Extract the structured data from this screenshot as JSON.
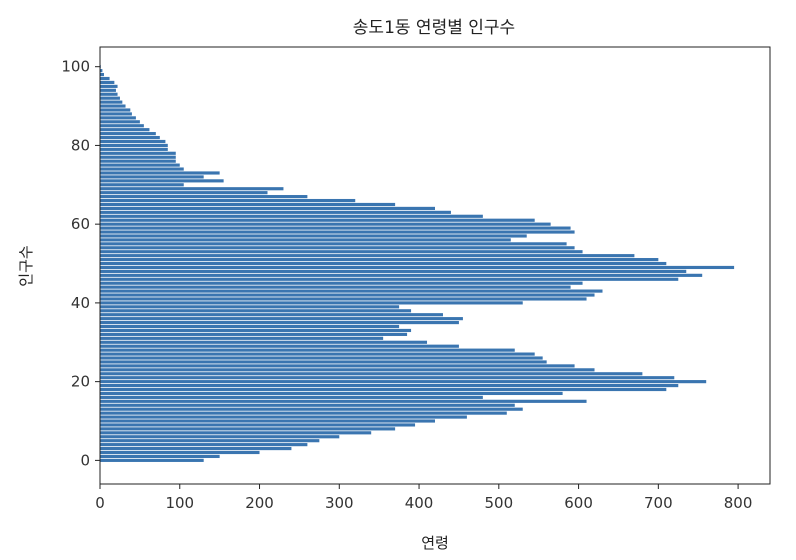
{
  "chart_data": {
    "type": "bar",
    "orientation": "horizontal",
    "title": "송도1동 연령별 인구수",
    "xlabel": "연령",
    "ylabel": "인구수",
    "xlim": [
      0,
      840
    ],
    "ylim": [
      -6,
      105
    ],
    "xticks": [
      "0",
      "100",
      "200",
      "300",
      "400",
      "500",
      "600",
      "700",
      "800"
    ],
    "yticks": [
      "0",
      "20",
      "40",
      "60",
      "80",
      "100"
    ],
    "grid": false,
    "bar_color": "#3a75b0",
    "ages": [
      0,
      1,
      2,
      3,
      4,
      5,
      6,
      7,
      8,
      9,
      10,
      11,
      12,
      13,
      14,
      15,
      16,
      17,
      18,
      19,
      20,
      21,
      22,
      23,
      24,
      25,
      26,
      27,
      28,
      29,
      30,
      31,
      32,
      33,
      34,
      35,
      36,
      37,
      38,
      39,
      40,
      41,
      42,
      43,
      44,
      45,
      46,
      47,
      48,
      49,
      50,
      51,
      52,
      53,
      54,
      55,
      56,
      57,
      58,
      59,
      60,
      61,
      62,
      63,
      64,
      65,
      66,
      67,
      68,
      69,
      70,
      71,
      72,
      73,
      74,
      75,
      76,
      77,
      78,
      79,
      80,
      81,
      82,
      83,
      84,
      85,
      86,
      87,
      88,
      89,
      90,
      91,
      92,
      93,
      94,
      95,
      96,
      97,
      98,
      99,
      100
    ],
    "values": [
      130,
      150,
      200,
      240,
      260,
      275,
      300,
      340,
      370,
      395,
      420,
      460,
      510,
      530,
      520,
      610,
      480,
      580,
      710,
      725,
      760,
      720,
      680,
      620,
      595,
      560,
      555,
      545,
      520,
      450,
      410,
      355,
      385,
      390,
      375,
      450,
      455,
      430,
      390,
      375,
      530,
      610,
      620,
      630,
      590,
      605,
      725,
      755,
      735,
      795,
      710,
      700,
      670,
      605,
      595,
      585,
      515,
      535,
      595,
      590,
      565,
      545,
      480,
      440,
      420,
      370,
      320,
      260,
      210,
      230,
      105,
      155,
      130,
      150,
      105,
      100,
      95,
      95,
      95,
      85,
      85,
      82,
      75,
      70,
      62,
      55,
      50,
      45,
      40,
      38,
      32,
      28,
      25,
      22,
      20,
      22,
      18,
      12,
      5,
      3,
      1
    ]
  }
}
